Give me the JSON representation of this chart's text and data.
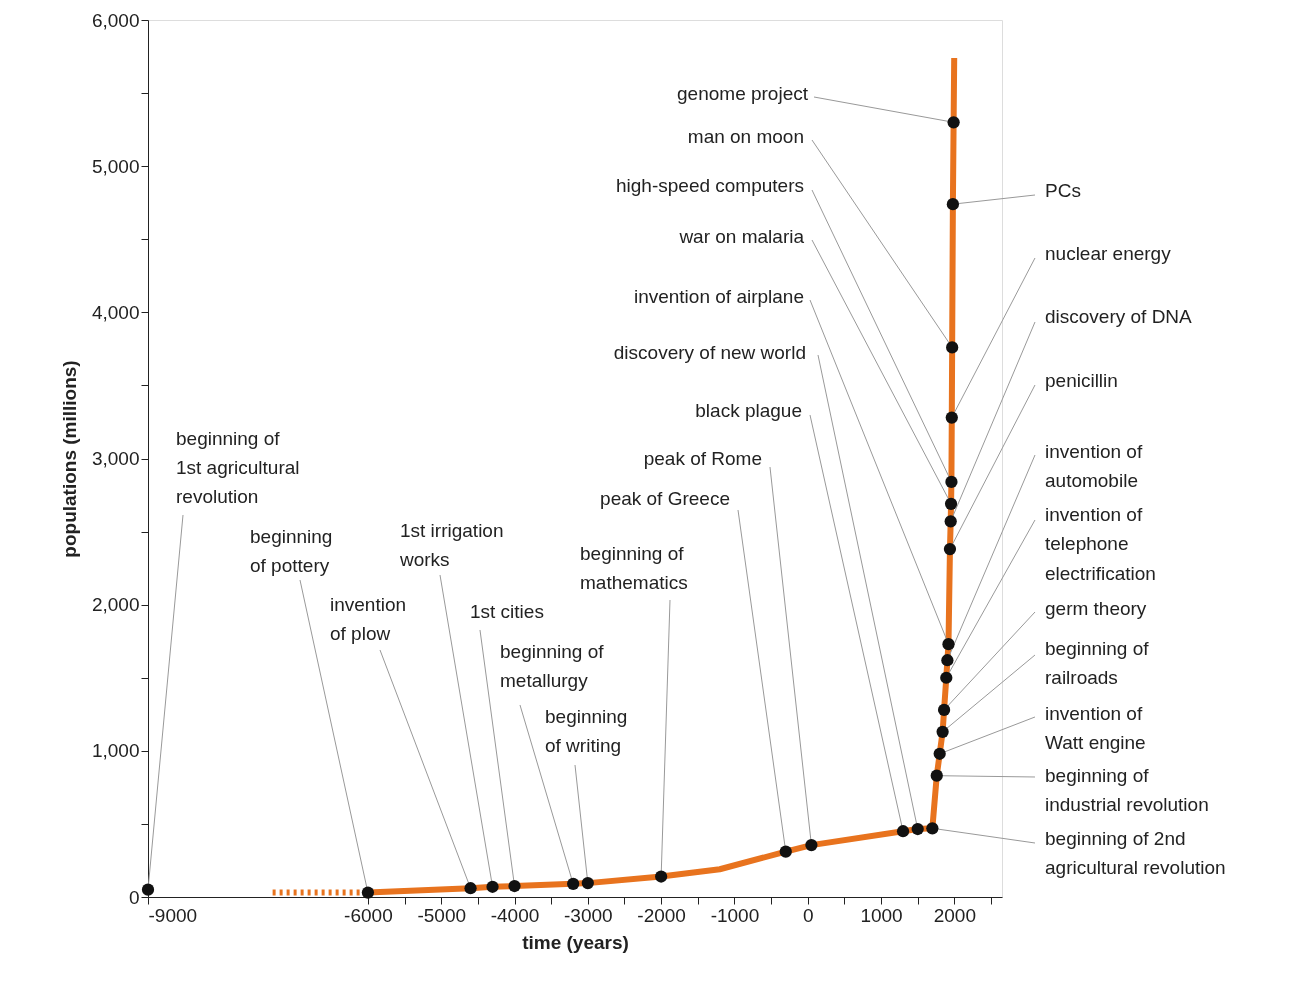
{
  "chart_data": {
    "type": "line",
    "xlabel": "time (years)",
    "ylabel": "populations (millions)",
    "xlim": [
      -9000,
      2650
    ],
    "ylim": [
      0,
      6000
    ],
    "xticks": [
      -9000,
      -6000,
      {
        "value": -5500,
        "label": null
      },
      -5000,
      {
        "value": -4500,
        "label": null
      },
      -4000,
      {
        "value": -3500,
        "label": null
      },
      -3000,
      {
        "value": -2500,
        "label": null
      },
      -2000,
      {
        "value": -1500,
        "label": null
      },
      -1000,
      {
        "value": -500,
        "label": null
      },
      0,
      {
        "value": 500,
        "label": null
      },
      1000,
      {
        "value": 1500,
        "label": null
      },
      2000,
      {
        "value": 2500,
        "label": null
      }
    ],
    "yticks": [
      0,
      {
        "value": 500,
        "label": null
      },
      {
        "value": 1000,
        "label": "1,000"
      },
      {
        "value": 1500,
        "label": null
      },
      {
        "value": 2000,
        "label": "2,000"
      },
      {
        "value": 2500,
        "label": null
      },
      {
        "value": 3000,
        "label": "3,000"
      },
      {
        "value": 3500,
        "label": null
      },
      {
        "value": 4000,
        "label": "4,000"
      },
      {
        "value": 4500,
        "label": null
      },
      {
        "value": 5000,
        "label": "5,000"
      },
      {
        "value": 5500,
        "label": null
      },
      {
        "value": 6000,
        "label": "6,000"
      }
    ],
    "grid": false,
    "series": [
      {
        "color": "#e8731e",
        "line_style": "solid",
        "x": [
          -6000,
          -4600,
          -4300,
          -4000,
          -3200,
          -3000,
          -2000,
          -1200,
          -300,
          50,
          1300,
          1500,
          1700,
          1760,
          1800,
          1840,
          1860,
          1890,
          1905,
          1920,
          1940,
          1950,
          1955,
          1960,
          1965,
          1970,
          1980,
          1990,
          1998
        ],
        "values": [
          30,
          60,
          70,
          75,
          90,
          95,
          140,
          190,
          310,
          355,
          450,
          465,
          470,
          830,
          980,
          1130,
          1280,
          1500,
          1620,
          1730,
          2380,
          2570,
          2690,
          2840,
          3280,
          3760,
          4740,
          5300,
          5740
        ]
      },
      {
        "type": "line",
        "color": "#e8731e",
        "line_style": "dotted",
        "x": [
          -7300,
          -6000
        ],
        "values": [
          30,
          30
        ]
      },
      {
        "type": "scatter",
        "color": "#111111",
        "marker": "circle",
        "x": [
          -9000,
          -6000,
          -4600,
          -4300,
          -4000,
          -3200,
          -3000,
          -2000,
          -300,
          50,
          1300,
          1500,
          1700,
          1760,
          1800,
          1840,
          1860,
          1890,
          1905,
          1920,
          1940,
          1950,
          1955,
          1960,
          1965,
          1970,
          1980,
          1990
        ],
        "values": [
          50,
          30,
          60,
          70,
          75,
          90,
          95,
          140,
          310,
          355,
          450,
          465,
          470,
          830,
          980,
          1130,
          1280,
          1500,
          1620,
          1730,
          2380,
          2570,
          2690,
          2840,
          3280,
          3760,
          4740,
          5300
        ]
      }
    ],
    "annotations": [
      {
        "text": "beginning of\n1st agricultural\nrevolution",
        "x": -9000,
        "y": 50
      },
      {
        "text": "beginning\nof pottery",
        "x": -6000,
        "y": 30
      },
      {
        "text": "invention\nof plow",
        "x": -4600,
        "y": 60
      },
      {
        "text": "1st irrigation\nworks",
        "x": -4300,
        "y": 70
      },
      {
        "text": "1st cities",
        "x": -4000,
        "y": 75
      },
      {
        "text": "beginning of\nmetallurgy",
        "x": -3200,
        "y": 90
      },
      {
        "text": "beginning\nof writing",
        "x": -3000,
        "y": 95
      },
      {
        "text": "beginning of\nmathematics",
        "x": -2000,
        "y": 140
      },
      {
        "text": "peak of Greece",
        "x": -300,
        "y": 310
      },
      {
        "text": "peak of Rome",
        "x": 50,
        "y": 355
      },
      {
        "text": "black plague",
        "x": 1300,
        "y": 450
      },
      {
        "text": "discovery of new world",
        "x": 1500,
        "y": 465
      },
      {
        "text": "beginning of 2nd\nagricultural revolution",
        "x": 1700,
        "y": 470
      },
      {
        "text": "beginning of\nindustrial revolution",
        "x": 1760,
        "y": 830
      },
      {
        "text": "invention of\nWatt engine",
        "x": 1800,
        "y": 980
      },
      {
        "text": "beginning of\nrailroads",
        "x": 1840,
        "y": 1130
      },
      {
        "text": "germ theory",
        "x": 1860,
        "y": 1280
      },
      {
        "text": "invention of\ntelephone",
        "x": 1890,
        "y": 1500
      },
      {
        "text": "invention of\nautomobile",
        "x": 1905,
        "y": 1620
      },
      {
        "text": "invention of airplane",
        "x": 1920,
        "y": 1730
      },
      {
        "text": "penicillin",
        "x": 1940,
        "y": 2380
      },
      {
        "text": "discovery of DNA",
        "x": 1950,
        "y": 2570
      },
      {
        "text": "war on malaria",
        "x": 1955,
        "y": 2690
      },
      {
        "text": "high-speed computers",
        "x": 1960,
        "y": 2840
      },
      {
        "text": "nuclear energy",
        "x": 1965,
        "y": 3280
      },
      {
        "text": "man on moon",
        "x": 1970,
        "y": 3760
      },
      {
        "text": "PCs",
        "x": 1980,
        "y": 4740
      },
      {
        "text": "genome project",
        "x": 1990,
        "y": 5300
      },
      "electrification"
    ]
  }
}
